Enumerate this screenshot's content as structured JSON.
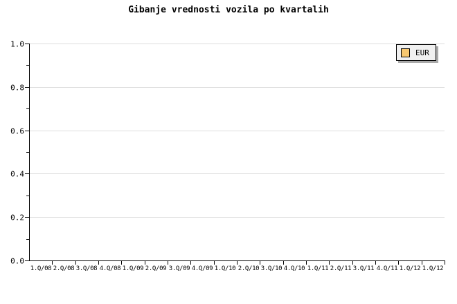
{
  "title": "Gibanje vrednosti vozila po kvartalih",
  "legend": {
    "position": "top-right",
    "entries": [
      {
        "label": "EUR",
        "swatch_color": "#F8C870"
      }
    ]
  },
  "colors": {
    "background": "#FFFFFF",
    "axis": "#000000",
    "gridline": "#DCDCDC",
    "text": "#000000",
    "legend_bg": "#F0F0F0",
    "legend_shadow": "#AAAAAA",
    "series_eur": "#F8C870"
  },
  "chart_data": {
    "type": "bar",
    "title": "Gibanje vrednosti vozila po kvartalih",
    "xlabel": "",
    "ylabel": "",
    "categories": [
      "1.Q/08",
      "2.Q/08",
      "3.Q/08",
      "4.Q/08",
      "1.Q/09",
      "2.Q/09",
      "3.Q/09",
      "4.Q/09",
      "1.Q/10",
      "2.Q/10",
      "3.Q/10",
      "4.Q/10",
      "1.Q/11",
      "2.Q/11",
      "3.Q/11",
      "4.Q/11",
      "1.Q/12",
      "1.Q/12"
    ],
    "series": [
      {
        "name": "EUR",
        "color": "#F8C870",
        "values": []
      }
    ],
    "ylim": [
      0.0,
      1.0
    ],
    "ytick_labels": [
      "0.0",
      "0.2",
      "0.4",
      "0.6",
      "0.8",
      "1.0"
    ],
    "minor_ytick_step": 0.1,
    "grid": "horizontal-major-only",
    "legend_position": "top-right",
    "plot_area_empty": true
  }
}
